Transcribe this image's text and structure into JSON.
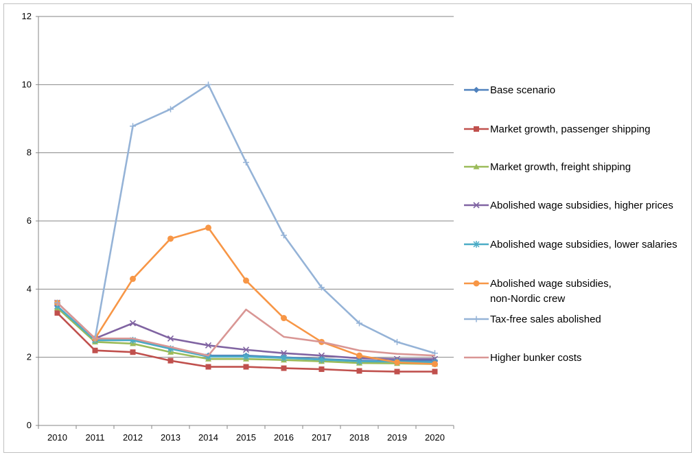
{
  "chart_data": {
    "type": "line",
    "title": "",
    "xlabel": "",
    "ylabel": "",
    "x": [
      "2010",
      "2011",
      "2012",
      "2013",
      "2014",
      "2015",
      "2016",
      "2017",
      "2018",
      "2019",
      "2020"
    ],
    "ylim": [
      0,
      12
    ],
    "yticks": [
      "0",
      "2",
      "4",
      "6",
      "8",
      "10",
      "12"
    ],
    "grid": "horizontal",
    "legend_position": "right",
    "series": [
      {
        "name": "Base scenario",
        "color": "#4f81bd",
        "marker": "diamond",
        "values": [
          3.5,
          2.5,
          2.5,
          2.25,
          2.05,
          2.05,
          2.0,
          1.95,
          1.9,
          1.9,
          1.9
        ]
      },
      {
        "name": "Market growth, passenger shipping",
        "color": "#c0504d",
        "marker": "square",
        "values": [
          3.3,
          2.2,
          2.15,
          1.9,
          1.72,
          1.72,
          1.68,
          1.65,
          1.6,
          1.58,
          1.58
        ]
      },
      {
        "name": "Market growth, freight shipping",
        "color": "#9bbb59",
        "marker": "triangle",
        "values": [
          3.45,
          2.45,
          2.4,
          2.15,
          1.95,
          1.95,
          1.92,
          1.88,
          1.83,
          1.82,
          1.8
        ]
      },
      {
        "name": "Abolished wage subsidies, higher prices",
        "color": "#8064a2",
        "marker": "x",
        "values": [
          3.6,
          2.55,
          3.0,
          2.55,
          2.35,
          2.22,
          2.12,
          2.05,
          1.97,
          1.95,
          1.95
        ]
      },
      {
        "name": "Abolished wage subsidies, lower salaries",
        "color": "#4bacc6",
        "marker": "star",
        "values": [
          3.5,
          2.5,
          2.5,
          2.25,
          2.02,
          2.02,
          1.98,
          1.93,
          1.88,
          1.87,
          1.85
        ]
      },
      {
        "name": "Abolished wage subsidies, non-Nordic crew",
        "color": "#f79646",
        "marker": "circle",
        "values": [
          3.6,
          2.55,
          4.3,
          5.48,
          5.8,
          4.25,
          3.15,
          2.45,
          2.05,
          1.85,
          1.8
        ]
      },
      {
        "name": "Tax-free sales abolished",
        "color": "#95b3d7",
        "marker": "plus",
        "values": [
          3.6,
          2.55,
          8.78,
          9.28,
          10.0,
          7.72,
          5.58,
          4.05,
          3.0,
          2.45,
          2.12
        ]
      },
      {
        "name": "Higher bunker costs",
        "color": "#d99694",
        "marker": "none",
        "values": [
          3.6,
          2.55,
          2.55,
          2.3,
          2.05,
          3.4,
          2.6,
          2.45,
          2.2,
          2.1,
          2.05
        ]
      }
    ]
  }
}
